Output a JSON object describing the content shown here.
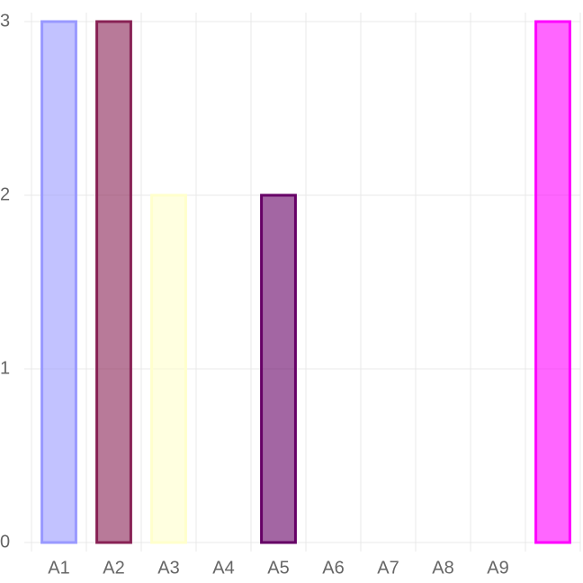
{
  "chart_data": {
    "type": "bar",
    "categories": [
      "A1",
      "A2",
      "A3",
      "A4",
      "A5",
      "A6",
      "A7",
      "A8",
      "A9",
      null
    ],
    "values": [
      3,
      3,
      2,
      0,
      2,
      0,
      0,
      0,
      0,
      3
    ],
    "colors": [
      "#9999ff",
      "#882255",
      "#ffffcc",
      "#ccffff",
      "#660066",
      "#ff8080",
      "#0066cc",
      "#ccccff",
      "#000080",
      "#ff00ff"
    ],
    "ylim": [
      0,
      3
    ],
    "yticks": [
      0,
      1,
      2,
      3
    ],
    "grid": true
  }
}
